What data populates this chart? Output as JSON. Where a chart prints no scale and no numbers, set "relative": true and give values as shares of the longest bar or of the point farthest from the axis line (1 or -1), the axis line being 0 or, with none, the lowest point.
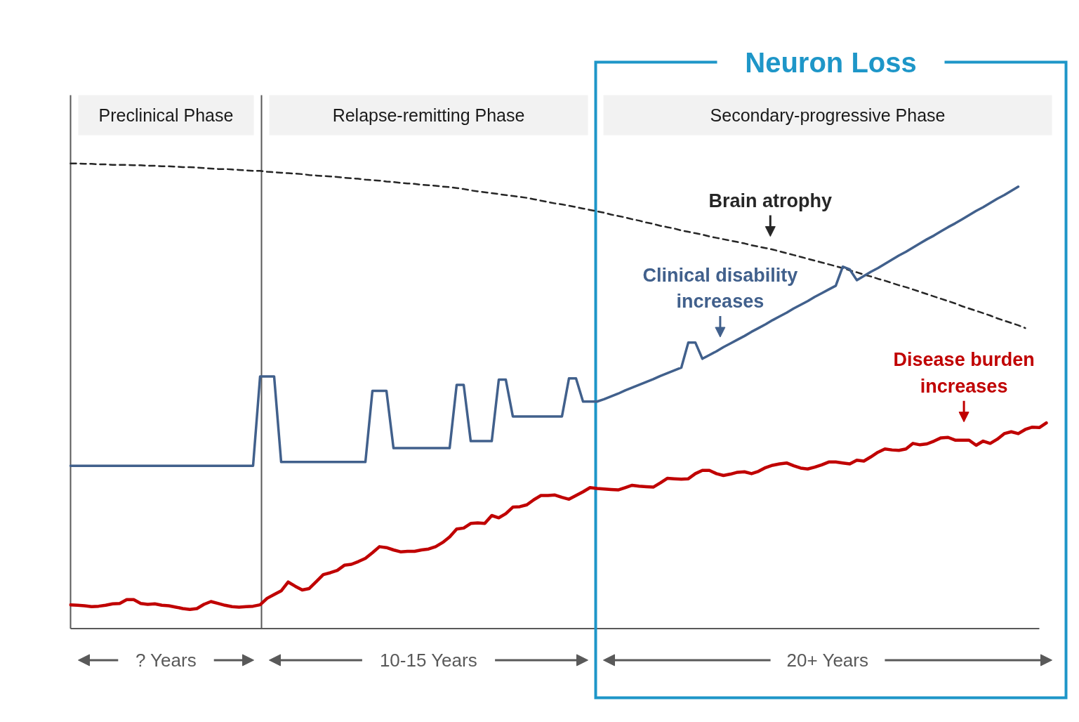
{
  "chart_data": {
    "type": "line",
    "relative": true,
    "tick_labels": false,
    "categories": [
      null,
      null,
      null,
      null,
      null,
      null,
      null,
      null,
      null,
      null,
      null,
      null,
      null,
      null,
      null,
      null,
      null,
      null,
      null,
      null,
      null,
      null,
      null,
      null,
      null,
      null,
      null,
      null,
      null,
      null,
      null,
      null,
      null,
      null,
      null,
      null,
      null,
      null,
      null,
      null,
      null,
      null,
      null,
      null,
      null,
      null,
      null,
      null,
      null,
      null,
      null,
      null,
      null,
      null,
      null,
      null,
      null,
      null,
      null,
      null,
      null,
      null,
      null,
      null,
      null,
      null,
      null,
      null,
      null,
      null,
      null,
      null,
      null,
      null,
      null,
      null,
      null,
      null,
      null,
      null,
      null,
      null,
      null,
      null,
      null,
      null,
      null,
      null,
      null,
      null,
      null,
      null,
      null,
      null,
      null,
      null,
      null,
      null,
      null,
      null,
      null,
      null,
      null,
      null,
      null,
      null,
      null,
      null,
      null,
      null,
      null,
      null,
      null,
      null,
      null,
      null,
      null,
      null,
      null,
      null,
      null,
      null,
      null,
      null,
      null,
      null,
      null,
      null,
      null,
      null,
      null,
      null,
      null,
      null,
      null,
      null,
      null,
      null,
      null,
      null,
      null
    ],
    "series": [
      {
        "name": "Brain atrophy",
        "color": "#262626",
        "line_style": "dashed",
        "values": [
          1.0,
          1.0,
          0.999,
          0.999,
          0.998,
          0.998,
          0.997,
          0.997,
          0.997,
          0.996,
          0.996,
          0.995,
          0.995,
          0.994,
          0.994,
          0.993,
          0.992,
          0.992,
          0.991,
          0.99,
          0.989,
          0.988,
          0.988,
          0.987,
          0.986,
          0.985,
          0.984,
          0.984,
          0.982,
          0.981,
          0.98,
          0.979,
          0.978,
          0.977,
          0.975,
          0.974,
          0.973,
          0.972,
          0.971,
          0.969,
          0.968,
          0.967,
          0.965,
          0.964,
          0.963,
          0.961,
          0.96,
          0.958,
          0.957,
          0.956,
          0.954,
          0.953,
          0.952,
          0.95,
          0.949,
          0.947,
          0.945,
          0.942,
          0.94,
          0.938,
          0.936,
          0.934,
          0.932,
          0.93,
          0.928,
          0.926,
          0.923,
          0.92,
          0.917,
          0.914,
          0.912,
          0.909,
          0.906,
          0.903,
          0.9,
          0.897,
          0.894,
          0.89,
          0.887,
          0.884,
          0.88,
          0.877,
          0.873,
          0.87,
          0.866,
          0.863,
          0.86,
          0.856,
          0.853,
          0.85,
          0.847,
          0.843,
          0.84,
          0.837,
          0.834,
          0.831,
          0.828,
          0.824,
          0.821,
          0.818,
          0.815,
          0.811,
          0.807,
          0.803,
          0.799,
          0.795,
          0.791,
          0.787,
          0.783,
          0.779,
          0.775,
          0.77,
          0.766,
          0.761,
          0.757,
          0.752,
          0.748,
          0.743,
          0.738,
          0.734,
          0.729,
          0.724,
          0.719,
          0.714,
          0.709,
          0.704,
          0.699,
          0.693,
          0.688,
          0.683,
          0.678,
          0.673,
          0.667,
          0.662,
          0.657,
          0.652,
          0.646,
          null,
          null,
          null,
          null
        ]
      },
      {
        "name": "Clinical disability increases",
        "color": "#41608c",
        "values": [
          0.35,
          0.35,
          0.35,
          0.35,
          0.35,
          0.35,
          0.35,
          0.35,
          0.35,
          0.35,
          0.35,
          0.35,
          0.35,
          0.35,
          0.35,
          0.35,
          0.35,
          0.35,
          0.35,
          0.35,
          0.35,
          0.35,
          0.35,
          0.35,
          0.35,
          0.35,
          0.35,
          0.542,
          0.542,
          0.542,
          0.358,
          0.358,
          0.358,
          0.358,
          0.358,
          0.358,
          0.358,
          0.358,
          0.358,
          0.358,
          0.358,
          0.358,
          0.358,
          0.511,
          0.511,
          0.511,
          0.388,
          0.388,
          0.388,
          0.388,
          0.388,
          0.388,
          0.388,
          0.388,
          0.388,
          0.524,
          0.524,
          0.403,
          0.403,
          0.403,
          0.403,
          0.535,
          0.535,
          0.456,
          0.456,
          0.456,
          0.456,
          0.456,
          0.456,
          0.456,
          0.456,
          0.538,
          0.538,
          0.488,
          0.488,
          0.488,
          0.493,
          0.499,
          0.505,
          0.512,
          0.518,
          0.524,
          0.53,
          0.536,
          0.543,
          0.549,
          0.555,
          0.561,
          0.615,
          0.615,
          0.58,
          0.588,
          0.596,
          0.605,
          0.613,
          0.621,
          0.629,
          0.638,
          0.646,
          0.654,
          0.663,
          0.671,
          0.679,
          0.688,
          0.696,
          0.704,
          0.713,
          0.721,
          0.729,
          0.737,
          0.778,
          0.772,
          0.749,
          0.758,
          0.767,
          0.775,
          0.784,
          0.793,
          0.802,
          0.81,
          0.819,
          0.828,
          0.837,
          0.845,
          0.854,
          0.863,
          0.871,
          0.88,
          0.889,
          0.898,
          0.906,
          0.915,
          0.924,
          0.932,
          0.941,
          0.95,
          null,
          null,
          null,
          null,
          null
        ]
      },
      {
        "name": "Disease burden increases",
        "color": "#c00000",
        "values": [
          0.051,
          0.05,
          0.049,
          0.047,
          0.048,
          0.05,
          0.053,
          0.054,
          0.062,
          0.062,
          0.054,
          0.052,
          0.053,
          0.05,
          0.049,
          0.046,
          0.043,
          0.041,
          0.043,
          0.052,
          0.058,
          0.054,
          0.05,
          0.047,
          0.046,
          0.047,
          0.048,
          0.051,
          0.065,
          0.073,
          0.081,
          0.1,
          0.091,
          0.083,
          0.086,
          0.101,
          0.116,
          0.12,
          0.125,
          0.136,
          0.138,
          0.144,
          0.151,
          0.163,
          0.176,
          0.174,
          0.169,
          0.165,
          0.166,
          0.166,
          0.169,
          0.171,
          0.176,
          0.185,
          0.197,
          0.214,
          0.216,
          0.226,
          0.227,
          0.226,
          0.243,
          0.238,
          0.247,
          0.261,
          0.262,
          0.266,
          0.277,
          0.286,
          0.286,
          0.287,
          0.282,
          0.278,
          0.286,
          0.294,
          0.303,
          0.301,
          0.3,
          0.299,
          0.298,
          0.303,
          0.308,
          0.306,
          0.305,
          0.304,
          0.313,
          0.323,
          0.322,
          0.321,
          0.322,
          0.333,
          0.34,
          0.34,
          0.333,
          0.329,
          0.332,
          0.336,
          0.337,
          0.333,
          0.338,
          0.346,
          0.351,
          0.354,
          0.356,
          0.35,
          0.345,
          0.343,
          0.347,
          0.352,
          0.358,
          0.358,
          0.356,
          0.354,
          0.362,
          0.36,
          0.369,
          0.379,
          0.386,
          0.384,
          0.383,
          0.386,
          0.398,
          0.395,
          0.397,
          0.403,
          0.41,
          0.411,
          0.405,
          0.405,
          0.405,
          0.394,
          0.403,
          0.398,
          0.407,
          0.419,
          0.423,
          0.419,
          0.428,
          0.433,
          0.432,
          0.442,
          null
        ]
      }
    ],
    "annotations": [
      "Preclinical Phase",
      "Relapse-remitting Phase",
      "Secondary-progressive Phase",
      "Neuron Loss",
      "? Years",
      "10-15 Years",
      "20+ Years"
    ]
  }
}
